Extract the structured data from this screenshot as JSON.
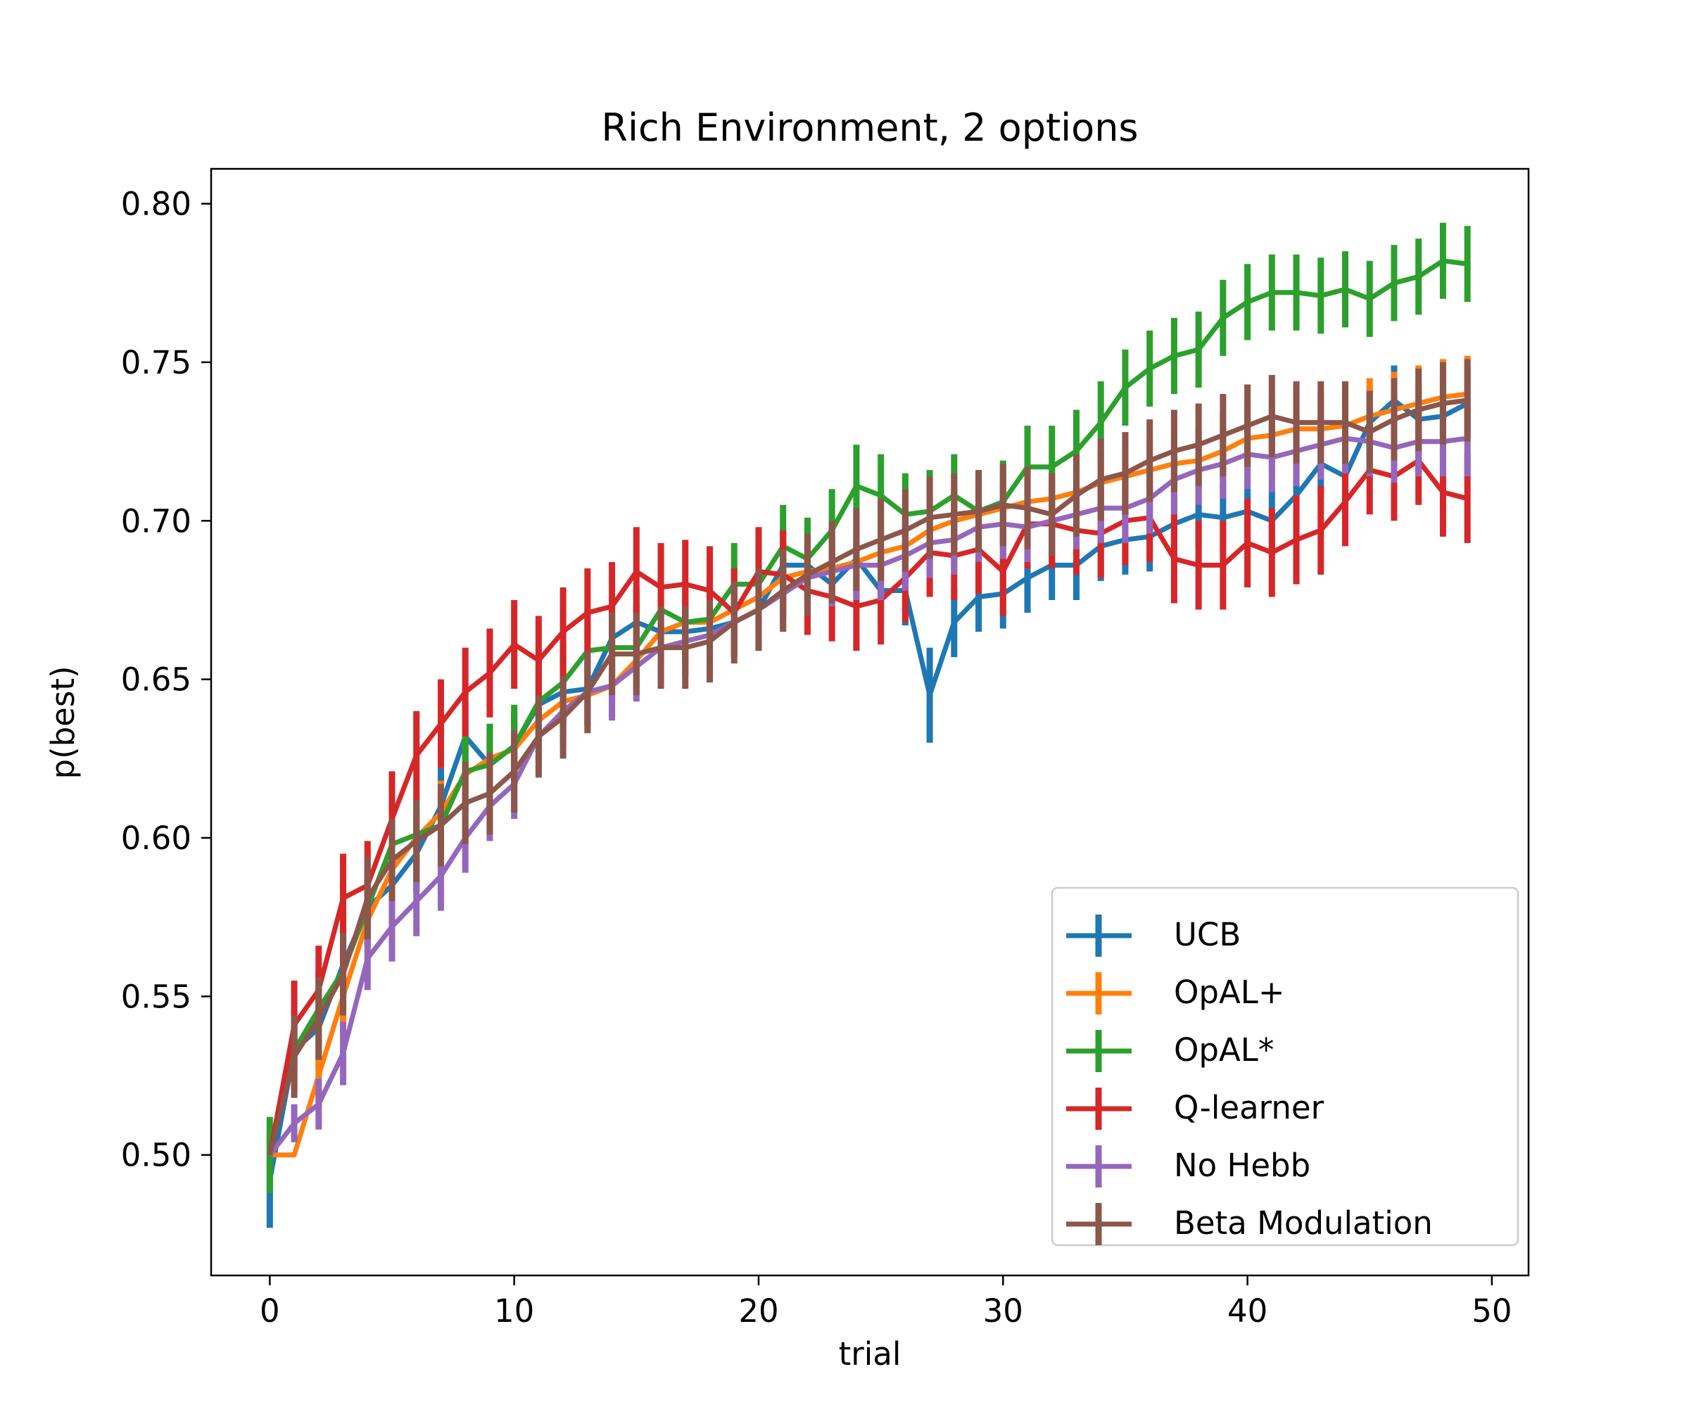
{
  "chart_data": {
    "type": "line",
    "title": "Rich Environment, 2 options",
    "xlabel": "trial",
    "ylabel": "p(best)",
    "xlim": [
      -2.4,
      51.5
    ],
    "ylim": [
      0.462,
      0.811
    ],
    "xticks": [
      0,
      10,
      20,
      30,
      40,
      50
    ],
    "xtick_labels": [
      "0",
      "10",
      "20",
      "30",
      "40",
      "50"
    ],
    "yticks": [
      0.5,
      0.55,
      0.6,
      0.65,
      0.7,
      0.75,
      0.8
    ],
    "ytick_labels": [
      "0.50",
      "0.55",
      "0.60",
      "0.65",
      "0.70",
      "0.75",
      "0.80"
    ],
    "grid": false,
    "legend_position": "lower-right",
    "error_bars": true,
    "x": [
      0,
      1,
      2,
      3,
      4,
      5,
      6,
      7,
      8,
      9,
      10,
      11,
      12,
      13,
      14,
      15,
      16,
      17,
      18,
      19,
      20,
      21,
      22,
      23,
      24,
      25,
      26,
      27,
      28,
      29,
      30,
      31,
      32,
      33,
      34,
      35,
      36,
      37,
      38,
      39,
      40,
      41,
      42,
      43,
      44,
      45,
      46,
      47,
      48,
      49
    ],
    "series": [
      {
        "name": "UCB",
        "color": "#1f77b4",
        "values": [
          0.492,
          0.533,
          0.54,
          0.56,
          0.578,
          0.585,
          0.595,
          0.61,
          0.632,
          0.623,
          0.629,
          0.642,
          0.646,
          0.647,
          0.663,
          0.668,
          0.665,
          0.665,
          0.666,
          0.668,
          0.672,
          0.686,
          0.686,
          0.68,
          0.688,
          0.678,
          0.678,
          0.645,
          0.668,
          0.676,
          0.677,
          0.682,
          0.686,
          0.686,
          0.692,
          0.694,
          0.695,
          0.699,
          0.702,
          0.701,
          0.703,
          0.7,
          0.708,
          0.718,
          0.714,
          0.731,
          0.738,
          0.732,
          0.733,
          0.737
        ],
        "errors": [
          0.015,
          0.013,
          0.013,
          0.013,
          0.012,
          0.012,
          0.012,
          0.012,
          0.011,
          0.011,
          0.011,
          0.011,
          0.011,
          0.011,
          0.011,
          0.011,
          0.011,
          0.011,
          0.011,
          0.011,
          0.011,
          0.011,
          0.011,
          0.011,
          0.011,
          0.011,
          0.011,
          0.015,
          0.011,
          0.011,
          0.011,
          0.011,
          0.011,
          0.011,
          0.011,
          0.011,
          0.011,
          0.011,
          0.011,
          0.011,
          0.011,
          0.011,
          0.011,
          0.011,
          0.011,
          0.011,
          0.011,
          0.011,
          0.011,
          0.011
        ]
      },
      {
        "name": "OpAL+",
        "color": "#ff7f0e",
        "values": [
          0.5,
          0.5,
          0.525,
          0.55,
          0.574,
          0.59,
          0.6,
          0.608,
          0.62,
          0.625,
          0.628,
          0.637,
          0.643,
          0.645,
          0.648,
          0.656,
          0.665,
          0.668,
          0.668,
          0.672,
          0.676,
          0.682,
          0.684,
          0.685,
          0.687,
          0.69,
          0.692,
          0.697,
          0.7,
          0.702,
          0.704,
          0.706,
          0.707,
          0.709,
          0.712,
          0.714,
          0.716,
          0.718,
          0.719,
          0.722,
          0.726,
          0.727,
          0.729,
          0.729,
          0.73,
          0.733,
          0.735,
          0.737,
          0.739,
          0.74
        ],
        "errors": [
          0.0,
          0.0,
          0.01,
          0.01,
          0.01,
          0.01,
          0.01,
          0.01,
          0.01,
          0.01,
          0.01,
          0.01,
          0.01,
          0.01,
          0.01,
          0.01,
          0.01,
          0.01,
          0.01,
          0.01,
          0.01,
          0.01,
          0.01,
          0.01,
          0.01,
          0.01,
          0.01,
          0.01,
          0.01,
          0.01,
          0.01,
          0.01,
          0.01,
          0.01,
          0.01,
          0.01,
          0.01,
          0.01,
          0.01,
          0.012,
          0.012,
          0.012,
          0.012,
          0.012,
          0.012,
          0.012,
          0.012,
          0.012,
          0.012,
          0.012
        ]
      },
      {
        "name": "OpAL*",
        "color": "#2ca02c",
        "values": [
          0.5,
          0.533,
          0.546,
          0.558,
          0.578,
          0.598,
          0.601,
          0.604,
          0.621,
          0.623,
          0.629,
          0.643,
          0.649,
          0.659,
          0.66,
          0.66,
          0.672,
          0.668,
          0.669,
          0.68,
          0.68,
          0.692,
          0.688,
          0.697,
          0.711,
          0.708,
          0.702,
          0.703,
          0.708,
          0.703,
          0.706,
          0.717,
          0.717,
          0.722,
          0.731,
          0.742,
          0.748,
          0.752,
          0.754,
          0.764,
          0.769,
          0.772,
          0.772,
          0.771,
          0.773,
          0.77,
          0.775,
          0.777,
          0.782,
          0.781
        ],
        "errors": [
          0.012,
          0.012,
          0.012,
          0.012,
          0.012,
          0.013,
          0.013,
          0.013,
          0.013,
          0.013,
          0.013,
          0.013,
          0.013,
          0.013,
          0.013,
          0.013,
          0.013,
          0.013,
          0.013,
          0.013,
          0.013,
          0.013,
          0.013,
          0.013,
          0.013,
          0.013,
          0.013,
          0.013,
          0.013,
          0.013,
          0.013,
          0.013,
          0.013,
          0.013,
          0.013,
          0.012,
          0.012,
          0.012,
          0.012,
          0.012,
          0.012,
          0.012,
          0.012,
          0.012,
          0.012,
          0.012,
          0.012,
          0.012,
          0.012,
          0.012
        ]
      },
      {
        "name": "Q-learner",
        "color": "#d62728",
        "values": [
          0.5,
          0.541,
          0.552,
          0.581,
          0.585,
          0.606,
          0.626,
          0.636,
          0.646,
          0.652,
          0.661,
          0.656,
          0.665,
          0.671,
          0.673,
          0.684,
          0.679,
          0.68,
          0.678,
          0.671,
          0.684,
          0.683,
          0.678,
          0.676,
          0.673,
          0.675,
          0.682,
          0.69,
          0.689,
          0.691,
          0.684,
          0.699,
          0.699,
          0.697,
          0.696,
          0.7,
          0.701,
          0.688,
          0.686,
          0.686,
          0.693,
          0.69,
          0.694,
          0.697,
          0.706,
          0.716,
          0.714,
          0.719,
          0.709,
          0.707
        ],
        "errors": [
          0.0,
          0.014,
          0.014,
          0.014,
          0.014,
          0.015,
          0.014,
          0.014,
          0.014,
          0.014,
          0.014,
          0.014,
          0.014,
          0.014,
          0.014,
          0.014,
          0.014,
          0.014,
          0.014,
          0.014,
          0.014,
          0.014,
          0.014,
          0.014,
          0.014,
          0.014,
          0.014,
          0.014,
          0.014,
          0.014,
          0.014,
          0.014,
          0.014,
          0.014,
          0.014,
          0.014,
          0.014,
          0.014,
          0.014,
          0.014,
          0.014,
          0.014,
          0.014,
          0.014,
          0.014,
          0.014,
          0.014,
          0.014,
          0.014,
          0.014
        ]
      },
      {
        "name": "No Hebb",
        "color": "#9467bd",
        "values": [
          0.5,
          0.51,
          0.516,
          0.532,
          0.562,
          0.572,
          0.58,
          0.588,
          0.6,
          0.61,
          0.617,
          0.632,
          0.64,
          0.646,
          0.648,
          0.654,
          0.66,
          0.662,
          0.664,
          0.668,
          0.672,
          0.677,
          0.682,
          0.684,
          0.686,
          0.686,
          0.689,
          0.693,
          0.694,
          0.698,
          0.699,
          0.698,
          0.7,
          0.702,
          0.704,
          0.704,
          0.707,
          0.713,
          0.716,
          0.718,
          0.721,
          0.72,
          0.722,
          0.724,
          0.726,
          0.725,
          0.723,
          0.725,
          0.725,
          0.726
        ],
        "errors": [
          0.0,
          0.006,
          0.008,
          0.01,
          0.01,
          0.011,
          0.011,
          0.011,
          0.011,
          0.011,
          0.011,
          0.011,
          0.011,
          0.011,
          0.011,
          0.011,
          0.011,
          0.011,
          0.011,
          0.011,
          0.011,
          0.011,
          0.011,
          0.011,
          0.011,
          0.011,
          0.011,
          0.011,
          0.011,
          0.011,
          0.011,
          0.011,
          0.011,
          0.011,
          0.011,
          0.011,
          0.011,
          0.011,
          0.011,
          0.011,
          0.011,
          0.011,
          0.011,
          0.011,
          0.011,
          0.011,
          0.011,
          0.011,
          0.011,
          0.012
        ]
      },
      {
        "name": "Beta Modulation",
        "color": "#8c564b",
        "values": [
          0.5,
          0.531,
          0.543,
          0.557,
          0.581,
          0.593,
          0.599,
          0.604,
          0.611,
          0.614,
          0.621,
          0.632,
          0.638,
          0.646,
          0.658,
          0.658,
          0.66,
          0.66,
          0.662,
          0.668,
          0.672,
          0.678,
          0.683,
          0.687,
          0.691,
          0.694,
          0.697,
          0.701,
          0.702,
          0.703,
          0.705,
          0.704,
          0.702,
          0.708,
          0.713,
          0.715,
          0.719,
          0.722,
          0.724,
          0.727,
          0.73,
          0.733,
          0.731,
          0.731,
          0.731,
          0.728,
          0.732,
          0.735,
          0.737,
          0.738
        ],
        "errors": [
          0.0,
          0.013,
          0.013,
          0.013,
          0.013,
          0.013,
          0.013,
          0.013,
          0.013,
          0.013,
          0.013,
          0.013,
          0.013,
          0.013,
          0.013,
          0.013,
          0.013,
          0.013,
          0.013,
          0.013,
          0.013,
          0.013,
          0.013,
          0.013,
          0.013,
          0.013,
          0.013,
          0.013,
          0.013,
          0.013,
          0.013,
          0.013,
          0.013,
          0.013,
          0.013,
          0.013,
          0.013,
          0.013,
          0.013,
          0.013,
          0.013,
          0.013,
          0.013,
          0.013,
          0.013,
          0.013,
          0.013,
          0.013,
          0.013,
          0.013
        ]
      }
    ]
  }
}
